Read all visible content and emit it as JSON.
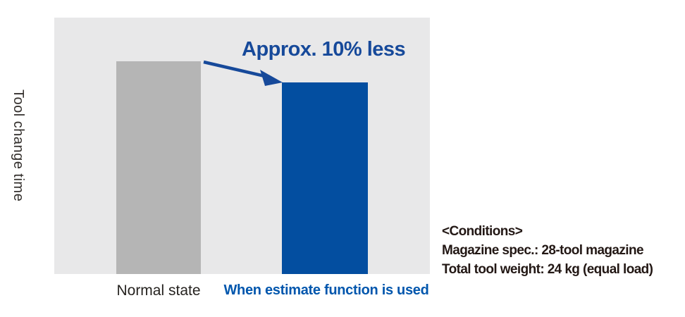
{
  "chart": {
    "ylabel": "Tool change time",
    "annotation": "Approx. 10% less",
    "x_labels": [
      "Normal state",
      "When estimate function is used"
    ]
  },
  "conditions": {
    "title": "<Conditions>",
    "line1": "Magazine spec.: 28-tool magazine",
    "line2": "Total tool weight: 24 kg (equal load)"
  },
  "colors": {
    "plot_background": "#e8e8e9",
    "bar_normal": "#b5b5b5",
    "bar_estimate": "#034ea0",
    "annotation_blue": "#16499a",
    "label_blue": "#0056ad",
    "text_dark": "#231815"
  },
  "chart_data": {
    "type": "bar",
    "title": "",
    "xlabel": "",
    "ylabel": "Tool change time",
    "categories": [
      "Normal state",
      "When estimate function is used"
    ],
    "values": [
      100,
      90
    ],
    "colors": [
      "#b5b5b5",
      "#034ea0"
    ],
    "ylim": [
      0,
      120
    ],
    "grid": false,
    "legend": "none",
    "annotations": [
      {
        "text": "Approx. 10% less",
        "meaning": "Tool change time is approximately 10% lower when the estimate function is used compared to normal state",
        "arrow_from": "top of Normal state bar",
        "arrow_to": "top of When estimate function is used bar"
      }
    ],
    "notes": [
      "<Conditions>",
      "Magazine spec.: 28-tool magazine",
      "Total tool weight: 24 kg (equal load)"
    ]
  }
}
